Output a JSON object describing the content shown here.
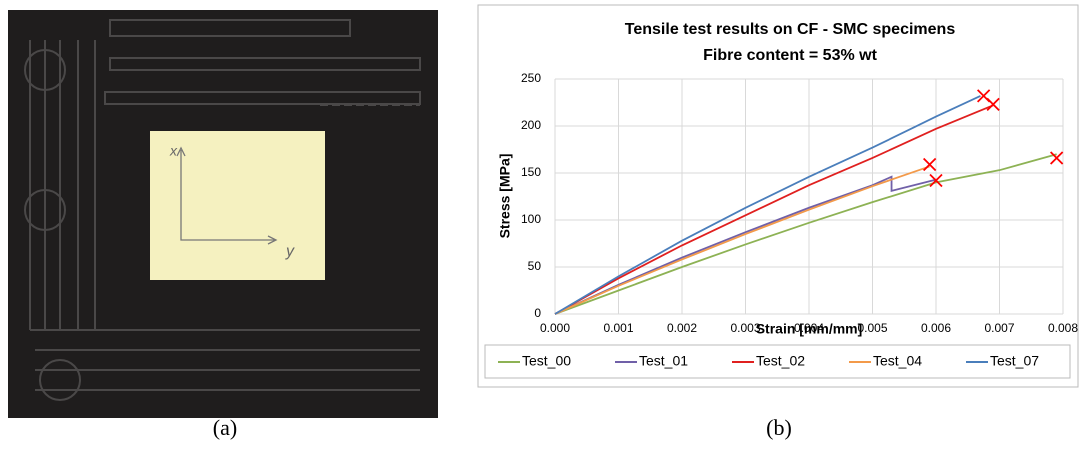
{
  "chart_data": {
    "type": "line",
    "title": "Tensile test results on CF - SMC specimens",
    "subtitle": "Fibre content = 53% wt",
    "x_label": "Strain [mm/mm]",
    "y_label": "Stress [MPa]",
    "xlim": [
      0,
      0.008
    ],
    "ylim": [
      0,
      250
    ],
    "xticks": [
      {
        "value": 0,
        "label": "0.000"
      },
      {
        "value": 0.001,
        "label": "0.001"
      },
      {
        "value": 0.002,
        "label": "0.002"
      },
      {
        "value": 0.003,
        "label": "0.003"
      },
      {
        "value": 0.004,
        "label": "0.004"
      },
      {
        "value": 0.005,
        "label": "0.005"
      },
      {
        "value": 0.006,
        "label": "0.006"
      },
      {
        "value": 0.007,
        "label": "0.007"
      },
      {
        "value": 0.008,
        "label": "0.008"
      }
    ],
    "yticks": [
      0,
      50,
      100,
      150,
      200,
      250
    ],
    "grid": true,
    "legend": "bottom",
    "series": [
      {
        "name": "Test_00",
        "color": "#8db254",
        "x": [
          0,
          0.001,
          0.002,
          0.003,
          0.004,
          0.005,
          0.006,
          0.007,
          0.0079
        ],
        "values": [
          0,
          25,
          50,
          74,
          97,
          119,
          140,
          153,
          170
        ]
      },
      {
        "name": "Test_01",
        "color": "#7060a8",
        "x": [
          0,
          0.001,
          0.002,
          0.003,
          0.004,
          0.005,
          0.0053,
          0.0053,
          0.006
        ],
        "values": [
          0,
          31,
          60,
          87,
          113,
          137,
          146,
          131,
          143
        ]
      },
      {
        "name": "Test_02",
        "color": "#e0201f",
        "x": [
          0,
          0.001,
          0.002,
          0.003,
          0.004,
          0.005,
          0.006,
          0.0069
        ],
        "values": [
          0,
          38,
          73,
          105,
          137,
          166,
          197,
          222
        ]
      },
      {
        "name": "Test_04",
        "color": "#f39a4a",
        "x": [
          0,
          0.001,
          0.002,
          0.003,
          0.004,
          0.005,
          0.0059
        ],
        "values": [
          0,
          30,
          58,
          85,
          111,
          136,
          157
        ]
      },
      {
        "name": "Test_07",
        "color": "#4a7ebb",
        "x": [
          0,
          0.001,
          0.002,
          0.003,
          0.004,
          0.005,
          0.006,
          0.0067
        ],
        "values": [
          0,
          40,
          78,
          113,
          146,
          177,
          210,
          232
        ]
      }
    ],
    "failure_points": {
      "color": "#ff0000",
      "x": [
        0.00675,
        0.0069,
        0.0059,
        0.006,
        0.0079
      ],
      "values": [
        232,
        223,
        159,
        142,
        166
      ]
    }
  },
  "photo_labels": [
    "x",
    "y"
  ],
  "captions": [
    "(a)",
    "(b)"
  ]
}
